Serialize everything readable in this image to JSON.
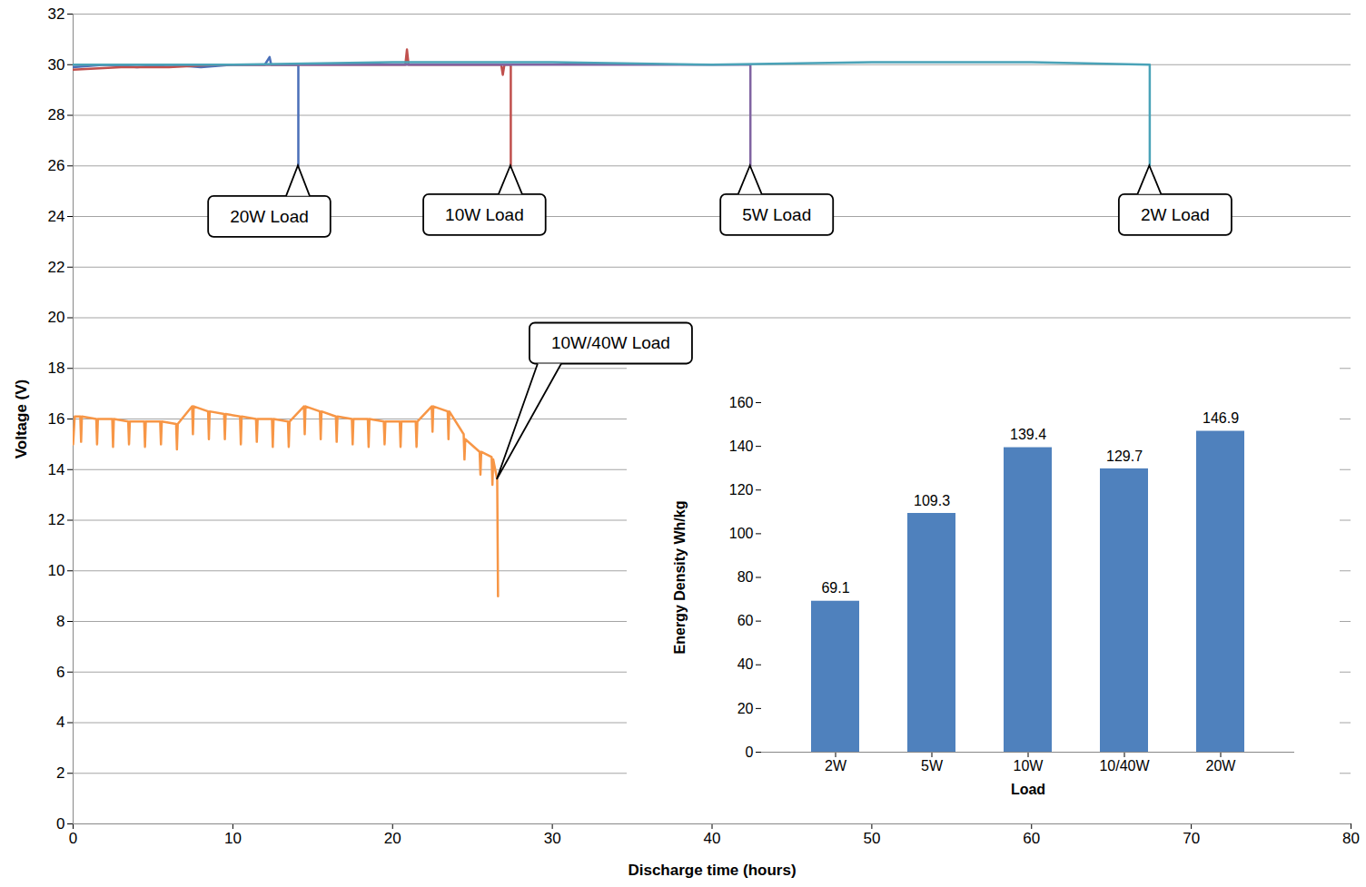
{
  "chart_data": [
    {
      "type": "line",
      "x_label": "Discharge time (hours)",
      "y_label": "Voltage (V)",
      "xlim": [
        0,
        80
      ],
      "xticks": [
        0,
        10,
        20,
        30,
        40,
        50,
        60,
        70,
        80
      ],
      "ylim": [
        0,
        32
      ],
      "yticks": [
        0,
        2,
        4,
        6,
        8,
        10,
        12,
        14,
        16,
        18,
        20,
        22,
        24,
        26,
        28,
        30,
        32
      ],
      "grid": true,
      "series": [
        {
          "name": "20W Load",
          "color": "#4a6fb8",
          "x": [
            0,
            2,
            4,
            6,
            8,
            10,
            12,
            12.3,
            12.4,
            12.6,
            14,
            14.1,
            14.1
          ],
          "values": [
            29.9,
            30.0,
            29.9,
            30.0,
            29.9,
            30.0,
            30.0,
            30.3,
            30.0,
            30.0,
            30.0,
            30.0,
            26.0
          ]
        },
        {
          "name": "10W Load",
          "color": "#c0504d",
          "x": [
            0,
            3,
            6,
            9,
            12,
            15,
            18,
            20.8,
            20.9,
            21.0,
            24,
            26.8,
            26.9,
            27.0,
            27.3,
            27.4,
            27.4
          ],
          "values": [
            29.8,
            29.9,
            29.9,
            30.0,
            30.0,
            30.0,
            30.0,
            30.0,
            30.6,
            30.0,
            30.0,
            30.0,
            29.6,
            30.0,
            30.0,
            30.0,
            26.0
          ]
        },
        {
          "name": "5W Load",
          "color": "#8064a2",
          "x": [
            0,
            10,
            20,
            30,
            40,
            42.4,
            42.4
          ],
          "values": [
            30.0,
            30.0,
            30.0,
            30.0,
            30.0,
            30.0,
            26.0
          ]
        },
        {
          "name": "2W Load",
          "color": "#4aa3b8",
          "x": [
            0,
            10,
            20,
            30,
            40,
            50,
            60,
            67.4,
            67.4
          ],
          "values": [
            30.0,
            30.0,
            30.1,
            30.1,
            30.0,
            30.1,
            30.1,
            30.0,
            26.0
          ]
        },
        {
          "name": "10W/40W Load",
          "color": "#f79646",
          "x": [
            0,
            0.1,
            0.45,
            0.5,
            0.55,
            1.45,
            1.5,
            1.55,
            2.45,
            2.5,
            2.55,
            3.45,
            3.5,
            3.55,
            4.45,
            4.5,
            4.55,
            5.45,
            5.5,
            5.55,
            6.45,
            6.5,
            6.55,
            7.45,
            7.5,
            7.55,
            8.45,
            8.5,
            8.55,
            9.45,
            9.5,
            9.55,
            10.45,
            10.5,
            10.55,
            11.45,
            11.5,
            11.55,
            12.45,
            12.5,
            12.55,
            13.45,
            13.5,
            13.55,
            14.45,
            14.5,
            14.55,
            15.45,
            15.5,
            15.55,
            16.45,
            16.5,
            16.55,
            17.45,
            17.5,
            17.55,
            18.45,
            18.5,
            18.55,
            19.45,
            19.5,
            19.55,
            20.45,
            20.5,
            20.55,
            21.45,
            21.5,
            21.55,
            22.45,
            22.5,
            22.55,
            23.45,
            23.5,
            23.55,
            24.45,
            24.5,
            24.55,
            25.45,
            25.5,
            25.55,
            26.2,
            26.25,
            26.3,
            26.55,
            26.6
          ],
          "values": [
            15.0,
            16.1,
            16.1,
            15.1,
            16.1,
            16.0,
            15.0,
            16.0,
            16.0,
            14.9,
            16.0,
            15.9,
            15.0,
            15.9,
            15.9,
            14.9,
            15.9,
            15.9,
            15.0,
            15.9,
            15.8,
            14.8,
            15.8,
            16.5,
            15.4,
            16.5,
            16.3,
            15.2,
            16.3,
            16.2,
            15.2,
            16.2,
            16.1,
            15.0,
            16.1,
            16.0,
            15.1,
            16.0,
            16.0,
            14.9,
            16.0,
            15.9,
            14.9,
            15.9,
            16.5,
            15.4,
            16.5,
            16.3,
            15.2,
            16.3,
            16.1,
            15.1,
            16.1,
            16.0,
            15.0,
            16.0,
            16.0,
            14.9,
            16.0,
            15.9,
            15.0,
            15.9,
            15.9,
            14.9,
            15.9,
            15.9,
            14.9,
            15.9,
            16.5,
            15.5,
            16.5,
            16.3,
            15.2,
            16.3,
            15.4,
            14.4,
            15.2,
            14.7,
            13.8,
            14.7,
            14.5,
            13.4,
            14.4,
            13.6,
            9.0
          ]
        }
      ]
    },
    {
      "type": "bar",
      "x_label": "Load",
      "y_label": "Energy Density Wh/kg",
      "categories": [
        "2W",
        "5W",
        "10W",
        "10/40W",
        "20W"
      ],
      "values": [
        69.1,
        109.3,
        139.4,
        129.7,
        146.9
      ],
      "color": "#4f81bd",
      "ylim": [
        0,
        160
      ],
      "yticks": [
        0,
        20,
        40,
        60,
        80,
        100,
        120,
        140,
        160
      ],
      "grid": false,
      "data_labels": true
    }
  ]
}
